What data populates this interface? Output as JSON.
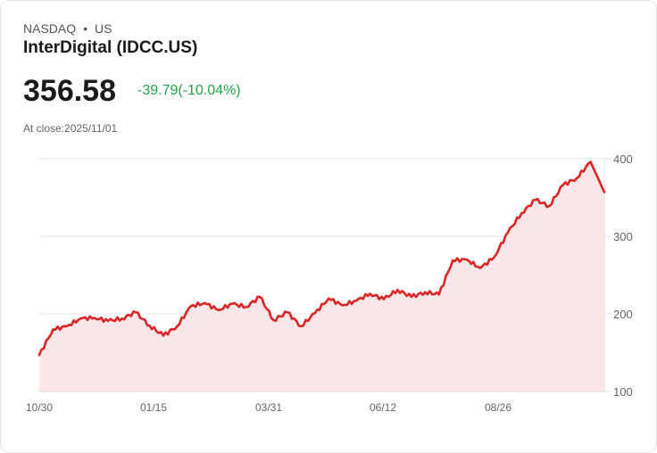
{
  "header": {
    "exchange": "NASDAQ",
    "separator": "•",
    "region": "US",
    "title": "InterDigital (IDCC.US)",
    "price": "356.58",
    "change": "-39.79(-10.04%)",
    "close_label": "At close:2025/11/01"
  },
  "colors": {
    "line": "#dc2626",
    "fill": "#fbe7e8",
    "change": "#22a447"
  },
  "chart_data": {
    "type": "area",
    "title": "InterDigital (IDCC.US)",
    "xlabel": "",
    "ylabel": "",
    "ylim": [
      100,
      400
    ],
    "y_ticks": [
      400,
      300,
      200,
      100
    ],
    "x_ticks": [
      "10/30",
      "01/15",
      "03/31",
      "06/12",
      "08/26"
    ],
    "grid": true,
    "y_axis_position": "right",
    "series": [
      {
        "name": "IDCC.US",
        "x": [
          "10/30",
          "11/10",
          "11/20",
          "12/01",
          "12/10",
          "12/20",
          "01/01",
          "01/10",
          "01/15",
          "01/25",
          "02/05",
          "02/15",
          "02/25",
          "03/05",
          "03/15",
          "03/25",
          "03/31",
          "04/08",
          "04/15",
          "04/25",
          "05/05",
          "05/15",
          "05/25",
          "06/05",
          "06/12",
          "06/22",
          "07/01",
          "07/10",
          "07/20",
          "07/28",
          "08/05",
          "08/12",
          "08/20",
          "08/26",
          "09/05",
          "09/15",
          "09/25",
          "10/05",
          "10/15",
          "10/25",
          "10/30",
          "11/01"
        ],
        "values": [
          147,
          180,
          184,
          194,
          195,
          191,
          194,
          202,
          185,
          172,
          184,
          210,
          214,
          205,
          213,
          209,
          222,
          192,
          202,
          184,
          201,
          220,
          211,
          217,
          226,
          219,
          231,
          222,
          228,
          225,
          269,
          270,
          259,
          273,
          305,
          330,
          347,
          339,
          366,
          375,
          396,
          357
        ]
      }
    ]
  }
}
